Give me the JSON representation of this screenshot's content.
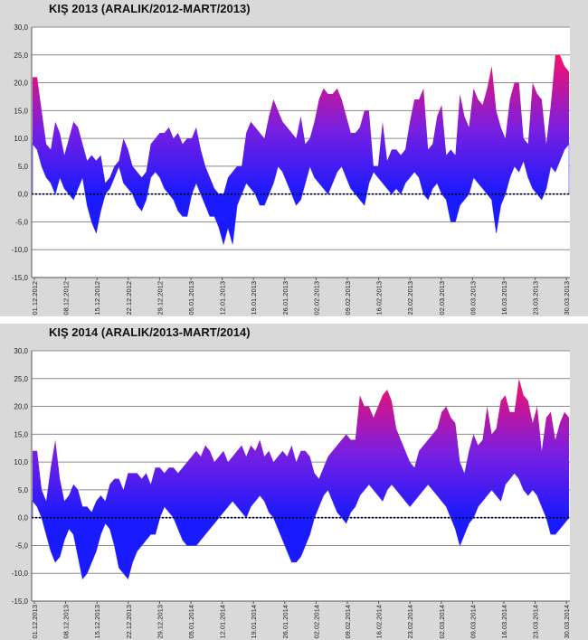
{
  "chart_data": [
    {
      "type": "area",
      "title": "KIŞ 2013 (ARALIK/2012-MART/2013)",
      "ylim": [
        -15,
        30
      ],
      "yticks": [
        "30,0",
        "25,0",
        "20,0",
        "15,0",
        "10,0",
        "5,0",
        "0,0",
        "-5,0",
        "-10,0",
        "-15,0"
      ],
      "ytick_values": [
        30,
        25,
        20,
        15,
        10,
        5,
        0,
        -5,
        -10,
        -15
      ],
      "x_tick_labels": [
        "01.12.2012",
        "08.12.2012",
        "15.12.2012",
        "22.12.2012",
        "29.12.2012",
        "05.01.2013",
        "12.01.2013",
        "19.01.2013",
        "26.01.2013",
        "02.02.2013",
        "09.02.2013",
        "16.02.2013",
        "23.02.2013",
        "02.03.2013",
        "09.03.2013",
        "16.03.2013",
        "23.03.2013",
        "30.03.2013"
      ],
      "grid": true,
      "series": [
        {
          "values": [
            21,
            21,
            15,
            9,
            8,
            13,
            11,
            7,
            10,
            13,
            12,
            9,
            6,
            7,
            6,
            7,
            2,
            3,
            5,
            6,
            10,
            8,
            5,
            4,
            3,
            4,
            9,
            10,
            11,
            11,
            12,
            10,
            11,
            9,
            10,
            10,
            12,
            8,
            5,
            3,
            1,
            0,
            0,
            3,
            4,
            5,
            5,
            11,
            13,
            12,
            11,
            10,
            14,
            17,
            15,
            13,
            12,
            11,
            10,
            14,
            9,
            10,
            13,
            17,
            19,
            18,
            18,
            19,
            17,
            14,
            11,
            11,
            12,
            15,
            15,
            5,
            5,
            13,
            6,
            8,
            8,
            7,
            8,
            13,
            17,
            17,
            19,
            8,
            9,
            14,
            16,
            7,
            8,
            7,
            18,
            14,
            12,
            19,
            17,
            16,
            19,
            23,
            15,
            12,
            10,
            17,
            20,
            20,
            10,
            9,
            20,
            18,
            17,
            9,
            16,
            25,
            25,
            23,
            22
          ]
        },
        {
          "values": [
            9,
            8,
            5,
            3,
            2,
            0,
            3,
            1,
            0,
            -1,
            1,
            3,
            -2,
            -5,
            -7,
            -3,
            0,
            1,
            3,
            5,
            2,
            1,
            0,
            -2,
            -3,
            -1,
            3,
            4,
            3,
            1,
            0,
            -1,
            -3,
            -4,
            -4,
            0,
            2,
            0,
            -2,
            -4,
            -4,
            -6,
            -9,
            -6,
            -9,
            -2,
            0,
            2,
            1,
            0,
            -2,
            -2,
            0,
            2,
            5,
            4,
            2,
            0,
            -2,
            -1,
            2,
            5,
            3,
            2,
            1,
            0,
            2,
            4,
            5,
            3,
            1,
            0,
            -1,
            -2,
            2,
            4,
            3,
            2,
            1,
            0,
            1,
            0,
            2,
            3,
            4,
            3,
            0,
            -1,
            1,
            2,
            0,
            -1,
            -5,
            -5,
            -2,
            -1,
            0,
            3,
            2,
            1,
            0,
            -1,
            -7,
            -2,
            0,
            3,
            5,
            4,
            6,
            3,
            1,
            0,
            -1,
            1,
            5,
            4,
            6,
            8,
            9
          ]
        }
      ]
    },
    {
      "type": "area",
      "title": "KIŞ 2014 (ARALIK/2013-MART/2014)",
      "ylim": [
        -15,
        30
      ],
      "yticks": [
        "30,0",
        "25,0",
        "20,0",
        "15,0",
        "10,0",
        "5,0",
        "0,0",
        "-5,0",
        "-10,0",
        "-15,0"
      ],
      "ytick_values": [
        30,
        25,
        20,
        15,
        10,
        5,
        0,
        -5,
        -10,
        -15
      ],
      "x_tick_labels": [
        "01.12.2013",
        "08.12.2013",
        "15.12.2013",
        "22.12.2013",
        "29.12.2013",
        "05.01.2014",
        "12.01.2014",
        "19.01.2014",
        "26.01.2014",
        "02.02.2014",
        "09.02.2014",
        "16.02.2014",
        "23.02.2014",
        "02.03.2014",
        "09.03.2014",
        "16.03.2014",
        "23.03.2014",
        "30.03.2014"
      ],
      "grid": true,
      "series": [
        {
          "values": [
            12,
            12,
            5,
            3,
            9,
            14,
            7,
            3,
            4,
            6,
            5,
            2,
            2,
            1,
            3,
            4,
            3,
            6,
            7,
            7,
            5,
            8,
            8,
            8,
            7,
            8,
            6,
            9,
            9,
            8,
            9,
            9,
            8,
            9,
            10,
            11,
            12,
            11,
            13,
            12,
            10,
            11,
            12,
            10,
            11,
            12,
            13,
            11,
            13,
            12,
            14,
            11,
            12,
            10,
            11,
            12,
            11,
            13,
            10,
            12,
            12,
            11,
            8,
            7,
            9,
            11,
            12,
            13,
            14,
            15,
            14,
            14,
            22,
            20,
            20,
            18,
            20,
            22,
            23,
            21,
            16,
            14,
            12,
            10,
            9,
            12,
            13,
            14,
            15,
            16,
            19,
            20,
            18,
            17,
            10,
            8,
            12,
            15,
            13,
            14,
            20,
            15,
            16,
            21,
            22,
            19,
            19,
            25,
            22,
            21,
            17,
            20,
            12,
            18,
            19,
            14,
            17,
            19,
            18
          ]
        },
        {
          "values": [
            3,
            2,
            0,
            -3,
            -6,
            -8,
            -7,
            -4,
            -2,
            -3,
            -7,
            -11,
            -10,
            -8,
            -6,
            -3,
            -1,
            -2,
            -5,
            -9,
            -10,
            -11,
            -8,
            -6,
            -5,
            -4,
            -3,
            -3,
            0,
            2,
            1,
            0,
            -2,
            -4,
            -5,
            -5,
            -5,
            -4,
            -3,
            -2,
            -1,
            0,
            1,
            2,
            3,
            2,
            1,
            0,
            2,
            3,
            4,
            3,
            1,
            0,
            -2,
            -4,
            -6,
            -8,
            -8,
            -7,
            -5,
            -3,
            0,
            2,
            4,
            5,
            3,
            1,
            0,
            -1,
            1,
            2,
            4,
            5,
            6,
            5,
            4,
            3,
            5,
            6,
            5,
            4,
            3,
            2,
            3,
            4,
            5,
            6,
            5,
            4,
            3,
            2,
            0,
            -2,
            -5,
            -3,
            -1,
            0,
            2,
            3,
            4,
            5,
            4,
            3,
            6,
            7,
            8,
            7,
            5,
            4,
            5,
            4,
            2,
            0,
            -3,
            -3,
            -2,
            -1,
            0
          ]
        }
      ]
    }
  ]
}
